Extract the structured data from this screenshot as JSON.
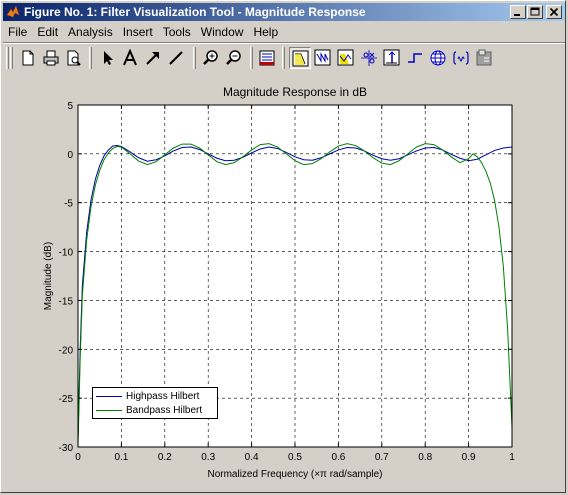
{
  "window": {
    "title": "Figure No. 1: Filter Visualization Tool - Magnitude Response"
  },
  "menu": [
    "File",
    "Edit",
    "Analysis",
    "Insert",
    "Tools",
    "Window",
    "Help"
  ],
  "toolbar": {
    "icons": [
      "new-figure-icon",
      "print-icon",
      "print-preview-icon",
      "select-arrow-icon",
      "text-icon",
      "arrow-icon",
      "line-icon",
      "zoom-in-icon",
      "zoom-out-icon",
      "filter-specs-icon",
      "magnitude-response-icon",
      "phase-response-icon",
      "magnitude-phase-icon",
      "pole-zero-icon",
      "impulse-response-icon",
      "step-response-icon",
      "group-delay-icon",
      "filter-coefficients-icon",
      "filter-info-icon"
    ]
  },
  "chart_data": {
    "type": "line",
    "title": "Magnitude Response in dB",
    "xlabel": "Normalized Frequency  (×π rad/sample)",
    "ylabel": "Magnitude (dB)",
    "xlim": [
      0,
      1
    ],
    "ylim": [
      -30,
      5
    ],
    "xticks": [
      "0",
      "0.1",
      "0.2",
      "0.3",
      "0.4",
      "0.5",
      "0.6",
      "0.7",
      "0.8",
      "0.9",
      "1"
    ],
    "yticks": [
      "5",
      "0",
      "-5",
      "-10",
      "-15",
      "-20",
      "-25",
      "-30"
    ],
    "grid": true,
    "legend_position": "bottom-left",
    "series": [
      {
        "name": "Highpass Hilbert",
        "color": "#0000aa",
        "x": [
          0,
          0.005,
          0.01,
          0.02,
          0.03,
          0.04,
          0.05,
          0.06,
          0.07,
          0.08,
          0.09,
          0.1,
          0.12,
          0.14,
          0.16,
          0.18,
          0.2,
          0.22,
          0.24,
          0.26,
          0.28,
          0.3,
          0.32,
          0.34,
          0.36,
          0.38,
          0.4,
          0.42,
          0.44,
          0.46,
          0.48,
          0.5,
          0.52,
          0.54,
          0.56,
          0.58,
          0.6,
          0.62,
          0.64,
          0.66,
          0.68,
          0.7,
          0.72,
          0.74,
          0.76,
          0.78,
          0.8,
          0.82,
          0.84,
          0.86,
          0.88,
          0.9,
          0.92,
          0.94,
          0.96,
          0.98,
          1.0
        ],
        "y": [
          -29,
          -20,
          -13.5,
          -8,
          -4.7,
          -2.6,
          -1.2,
          -0.2,
          0.4,
          0.8,
          0.85,
          0.75,
          0.2,
          -0.4,
          -0.75,
          -0.6,
          -0.2,
          0.3,
          0.65,
          0.7,
          0.45,
          0.0,
          -0.45,
          -0.7,
          -0.65,
          -0.35,
          0.1,
          0.5,
          0.7,
          0.55,
          0.15,
          -0.3,
          -0.6,
          -0.65,
          -0.4,
          0.0,
          0.4,
          0.65,
          0.6,
          0.3,
          -0.15,
          -0.5,
          -0.65,
          -0.5,
          -0.1,
          0.3,
          0.6,
          0.65,
          0.4,
          -0.05,
          -0.45,
          -0.7,
          -0.55,
          -0.1,
          0.35,
          0.6,
          0.7
        ]
      },
      {
        "name": "Bandpass Hilbert",
        "color": "#008000",
        "x": [
          0,
          0.005,
          0.01,
          0.02,
          0.03,
          0.04,
          0.05,
          0.06,
          0.07,
          0.08,
          0.09,
          0.1,
          0.12,
          0.14,
          0.16,
          0.18,
          0.2,
          0.22,
          0.24,
          0.26,
          0.28,
          0.3,
          0.32,
          0.34,
          0.36,
          0.38,
          0.4,
          0.42,
          0.44,
          0.46,
          0.48,
          0.5,
          0.52,
          0.54,
          0.56,
          0.58,
          0.6,
          0.62,
          0.64,
          0.66,
          0.68,
          0.7,
          0.72,
          0.74,
          0.76,
          0.78,
          0.8,
          0.82,
          0.84,
          0.86,
          0.88,
          0.9,
          0.91,
          0.92,
          0.93,
          0.94,
          0.95,
          0.96,
          0.97,
          0.98,
          0.99,
          0.995,
          1.0
        ],
        "y": [
          -30,
          -21,
          -14.5,
          -8.8,
          -5.4,
          -3.2,
          -1.7,
          -0.6,
          0.1,
          0.55,
          0.75,
          0.7,
          0.0,
          -0.75,
          -1.1,
          -0.8,
          -0.1,
          0.6,
          1.0,
          1.0,
          0.6,
          -0.1,
          -0.8,
          -1.1,
          -0.9,
          -0.3,
          0.4,
          0.95,
          1.05,
          0.7,
          0.0,
          -0.7,
          -1.1,
          -1.0,
          -0.5,
          0.2,
          0.8,
          1.05,
          0.85,
          0.3,
          -0.4,
          -0.95,
          -1.1,
          -0.7,
          0.0,
          0.7,
          1.05,
          0.95,
          0.4,
          -0.3,
          -0.9,
          -0.5,
          0.0,
          -0.3,
          -0.9,
          -1.8,
          -3.0,
          -4.8,
          -7.5,
          -11.5,
          -18,
          -23,
          -28
        ]
      }
    ]
  }
}
